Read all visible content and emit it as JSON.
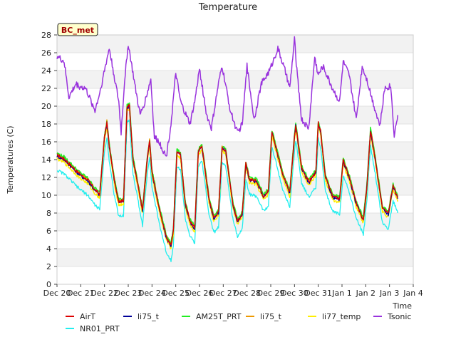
{
  "chart_data": {
    "type": "line",
    "title": "Temperature",
    "xlabel": "Time",
    "ylabel": "Temperatures (C)",
    "site_badge": "BC_met",
    "ylim": [
      0,
      28
    ],
    "yticks": [
      0,
      2,
      4,
      6,
      8,
      10,
      12,
      14,
      16,
      18,
      20,
      22,
      24,
      26,
      28
    ],
    "xlim": [
      0,
      15
    ],
    "xticks": [
      {
        "pos": 0,
        "label": "Dec 20"
      },
      {
        "pos": 1,
        "label": "Dec 21"
      },
      {
        "pos": 2,
        "label": "Dec 22"
      },
      {
        "pos": 3,
        "label": "Dec 23"
      },
      {
        "pos": 4,
        "label": "Dec 24"
      },
      {
        "pos": 5,
        "label": "Dec 25"
      },
      {
        "pos": 6,
        "label": "Dec 26"
      },
      {
        "pos": 7,
        "label": "Dec 27"
      },
      {
        "pos": 8,
        "label": "Dec 28"
      },
      {
        "pos": 9,
        "label": "Dec 29"
      },
      {
        "pos": 10,
        "label": "Dec 30"
      },
      {
        "pos": 11,
        "label": "Dec 31"
      },
      {
        "pos": 12,
        "label": "Jan 1"
      },
      {
        "pos": 13,
        "label": "Jan 2"
      },
      {
        "pos": 14,
        "label": "Jan 3"
      },
      {
        "pos": 15,
        "label": "Jan 4"
      }
    ],
    "grid": "horizontal bands",
    "legend_position": "bottom",
    "base_series": {
      "x": [
        0.0,
        0.3,
        0.6,
        0.9,
        1.3,
        1.6,
        1.8,
        2.0,
        2.1,
        2.2,
        2.4,
        2.6,
        2.8,
        2.95,
        3.05,
        3.2,
        3.4,
        3.6,
        3.8,
        3.9,
        4.0,
        4.3,
        4.6,
        4.8,
        4.9,
        5.05,
        5.2,
        5.4,
        5.6,
        5.8,
        5.95,
        6.1,
        6.4,
        6.6,
        6.8,
        6.95,
        7.1,
        7.4,
        7.6,
        7.8,
        7.95,
        8.1,
        8.4,
        8.7,
        8.9,
        9.05,
        9.2,
        9.5,
        9.8,
        9.95,
        10.05,
        10.3,
        10.6,
        10.9,
        11.0,
        11.1,
        11.3,
        11.6,
        11.9,
        12.05,
        12.3,
        12.6,
        12.9,
        13.05,
        13.2,
        13.4,
        13.7,
        13.95,
        14.15,
        14.35
      ],
      "y": [
        14.4,
        14.0,
        13.2,
        12.4,
        11.6,
        10.5,
        10.0,
        16.5,
        18.1,
        15.5,
        11.8,
        9.2,
        9.3,
        19.8,
        20.0,
        14.0,
        11.2,
        8.2,
        14.0,
        16.0,
        12.5,
        8.5,
        5.2,
        4.3,
        6.0,
        14.8,
        14.5,
        9.0,
        7.0,
        6.2,
        14.8,
        15.5,
        9.5,
        7.4,
        8.0,
        15.2,
        15.0,
        9.0,
        7.0,
        7.8,
        13.5,
        11.7,
        11.5,
        9.8,
        10.4,
        17.0,
        15.5,
        12.3,
        10.2,
        15.0,
        17.8,
        13.0,
        11.4,
        12.5,
        18.0,
        17.0,
        12.0,
        9.8,
        9.5,
        13.8,
        12.0,
        9.0,
        7.2,
        11.0,
        17.2,
        14.0,
        8.5,
        7.8,
        11.0,
        9.6
      ]
    },
    "tsonic_series": {
      "x": [
        0.0,
        0.3,
        0.5,
        0.8,
        0.95,
        1.2,
        1.6,
        1.8,
        2.0,
        2.2,
        2.4,
        2.6,
        2.7,
        2.85,
        3.0,
        3.3,
        3.5,
        3.7,
        3.95,
        4.1,
        4.3,
        4.6,
        4.8,
        5.0,
        5.2,
        5.35,
        5.6,
        5.8,
        6.0,
        6.3,
        6.5,
        6.8,
        6.95,
        7.3,
        7.6,
        7.8,
        8.0,
        8.3,
        8.6,
        8.95,
        9.3,
        9.6,
        9.8,
        10.0,
        10.1,
        10.3,
        10.6,
        10.85,
        11.0,
        11.2,
        11.6,
        11.9,
        12.05,
        12.3,
        12.6,
        12.85,
        13.05,
        13.3,
        13.6,
        13.8,
        14.05,
        14.2,
        14.35
      ],
      "y": [
        25.6,
        25.0,
        21.0,
        22.5,
        22.2,
        22.0,
        19.5,
        21.5,
        24.0,
        26.5,
        23.5,
        20.5,
        17.0,
        23.0,
        27.0,
        22.0,
        19.0,
        20.5,
        23.0,
        16.5,
        16.0,
        14.3,
        18.0,
        23.7,
        20.5,
        19.5,
        18.0,
        20.5,
        24.2,
        19.0,
        17.5,
        22.5,
        24.5,
        19.5,
        17.0,
        18.0,
        24.5,
        18.5,
        22.5,
        24.0,
        26.5,
        24.0,
        22.0,
        27.5,
        24.0,
        18.5,
        17.5,
        25.5,
        23.5,
        24.5,
        22.0,
        20.5,
        25.0,
        23.5,
        18.5,
        24.5,
        23.0,
        20.5,
        17.8,
        22.0,
        22.3,
        16.8,
        19.0
      ]
    },
    "series": [
      {
        "name": "AirT",
        "color": "#dd0000",
        "offset": 0.1,
        "width": 1.3
      },
      {
        "name": "li75_t",
        "color": "#000099",
        "offset": 0.0,
        "width": 1.3
      },
      {
        "name": "AM25T_PRT",
        "color": "#22ee22",
        "offset": 0.3,
        "width": 1.5
      },
      {
        "name": "li75_t",
        "color": "#ee9900",
        "offset": 0.2,
        "width": 1.5
      },
      {
        "name": "li77_temp",
        "color": "#ffee00",
        "offset": -0.3,
        "width": 1.5
      },
      {
        "name": "Tsonic",
        "color": "#9933dd",
        "offset": 0.0,
        "width": 1.5,
        "uses": "tsonic"
      },
      {
        "name": "NR01_PRT",
        "color": "#22eeee",
        "offset": -1.6,
        "width": 1.3
      }
    ]
  }
}
